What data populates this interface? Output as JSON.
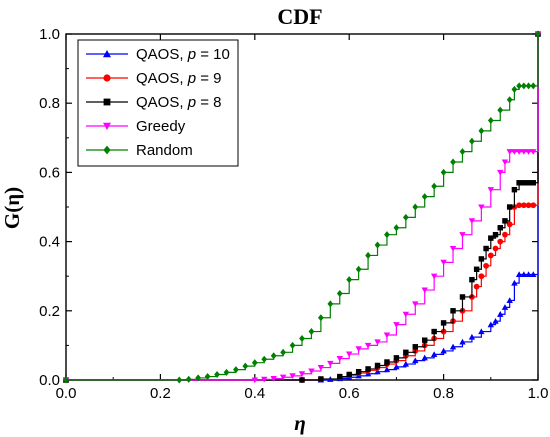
{
  "chart_data": {
    "type": "line",
    "title": "CDF",
    "xlabel": "η",
    "ylabel": "G(η)",
    "xlim": [
      0.0,
      1.0
    ],
    "ylim": [
      0.0,
      1.0
    ],
    "xticks": [
      "0.0",
      "0.2",
      "0.4",
      "0.6",
      "0.8",
      "1.0"
    ],
    "yticks": [
      "0.0",
      "0.2",
      "0.4",
      "0.6",
      "0.8",
      "1.0"
    ],
    "grid": false,
    "legend_position": "top-left",
    "series": [
      {
        "name": "QAOS, p = 10",
        "legend_prefix": "QAOS,",
        "legend_p": "p",
        "legend_value": "= 10",
        "color": "#0000ff",
        "marker": "triangle-up",
        "x": [
          0.0,
          0.54,
          0.56,
          0.58,
          0.6,
          0.62,
          0.64,
          0.66,
          0.68,
          0.7,
          0.72,
          0.74,
          0.76,
          0.78,
          0.8,
          0.82,
          0.84,
          0.86,
          0.88,
          0.9,
          0.91,
          0.92,
          0.93,
          0.94,
          0.95,
          0.96,
          0.97,
          0.98,
          0.99,
          1.0
        ],
        "y": [
          0.0,
          0.0,
          0.002,
          0.004,
          0.008,
          0.012,
          0.018,
          0.024,
          0.03,
          0.038,
          0.046,
          0.056,
          0.064,
          0.074,
          0.084,
          0.096,
          0.11,
          0.124,
          0.14,
          0.16,
          0.17,
          0.19,
          0.21,
          0.23,
          0.28,
          0.305,
          0.305,
          0.305,
          0.305,
          1.0
        ]
      },
      {
        "name": "QAOS, p = 9",
        "legend_prefix": "QAOS,",
        "legend_p": "p",
        "legend_value": "= 9",
        "color": "#ff0000",
        "marker": "circle",
        "x": [
          0.0,
          0.5,
          0.54,
          0.58,
          0.6,
          0.62,
          0.64,
          0.66,
          0.68,
          0.7,
          0.72,
          0.74,
          0.76,
          0.78,
          0.8,
          0.82,
          0.84,
          0.86,
          0.87,
          0.88,
          0.89,
          0.9,
          0.91,
          0.92,
          0.93,
          0.94,
          0.95,
          0.96,
          0.97,
          0.98,
          0.99,
          1.0
        ],
        "y": [
          0.0,
          0.0,
          0.002,
          0.008,
          0.014,
          0.02,
          0.028,
          0.036,
          0.046,
          0.056,
          0.07,
          0.084,
          0.1,
          0.12,
          0.14,
          0.17,
          0.2,
          0.24,
          0.27,
          0.3,
          0.33,
          0.36,
          0.38,
          0.4,
          0.42,
          0.45,
          0.5,
          0.505,
          0.505,
          0.505,
          0.505,
          1.0
        ]
      },
      {
        "name": "QAOS, p = 8",
        "legend_prefix": "QAOS,",
        "legend_p": "p",
        "legend_value": "= 8",
        "color": "#000000",
        "marker": "square",
        "x": [
          0.0,
          0.5,
          0.54,
          0.58,
          0.6,
          0.62,
          0.64,
          0.66,
          0.68,
          0.7,
          0.72,
          0.74,
          0.76,
          0.78,
          0.8,
          0.82,
          0.84,
          0.86,
          0.87,
          0.88,
          0.89,
          0.9,
          0.91,
          0.92,
          0.93,
          0.94,
          0.95,
          0.96,
          0.97,
          0.98,
          0.99,
          1.0
        ],
        "y": [
          0.0,
          0.0,
          0.003,
          0.01,
          0.016,
          0.024,
          0.032,
          0.042,
          0.052,
          0.064,
          0.08,
          0.096,
          0.115,
          0.14,
          0.165,
          0.2,
          0.24,
          0.29,
          0.32,
          0.35,
          0.38,
          0.41,
          0.42,
          0.44,
          0.46,
          0.5,
          0.55,
          0.57,
          0.57,
          0.57,
          0.57,
          1.0
        ]
      },
      {
        "name": "Greedy",
        "color": "#ff00ff",
        "marker": "triangle-down",
        "x": [
          0.0,
          0.4,
          0.42,
          0.44,
          0.46,
          0.48,
          0.5,
          0.52,
          0.54,
          0.56,
          0.58,
          0.6,
          0.62,
          0.64,
          0.66,
          0.68,
          0.7,
          0.72,
          0.74,
          0.76,
          0.78,
          0.8,
          0.82,
          0.84,
          0.86,
          0.88,
          0.9,
          0.92,
          0.93,
          0.94,
          0.95,
          0.96,
          0.97,
          0.98,
          0.99,
          1.0
        ],
        "y": [
          0.0,
          0.0,
          0.002,
          0.004,
          0.008,
          0.012,
          0.018,
          0.026,
          0.036,
          0.048,
          0.062,
          0.075,
          0.09,
          0.1,
          0.11,
          0.13,
          0.16,
          0.19,
          0.22,
          0.26,
          0.3,
          0.34,
          0.38,
          0.42,
          0.46,
          0.5,
          0.55,
          0.6,
          0.63,
          0.66,
          0.66,
          0.66,
          0.66,
          0.66,
          0.66,
          1.0
        ]
      },
      {
        "name": "Random",
        "color": "#008000",
        "marker": "diamond",
        "x": [
          0.0,
          0.24,
          0.26,
          0.28,
          0.3,
          0.32,
          0.34,
          0.36,
          0.38,
          0.4,
          0.42,
          0.44,
          0.46,
          0.48,
          0.5,
          0.52,
          0.54,
          0.56,
          0.58,
          0.6,
          0.62,
          0.64,
          0.66,
          0.68,
          0.7,
          0.72,
          0.74,
          0.76,
          0.78,
          0.8,
          0.82,
          0.84,
          0.86,
          0.88,
          0.9,
          0.92,
          0.94,
          0.95,
          0.96,
          0.97,
          0.98,
          0.99,
          1.0
        ],
        "y": [
          0.0,
          0.0,
          0.002,
          0.006,
          0.01,
          0.016,
          0.022,
          0.03,
          0.04,
          0.05,
          0.06,
          0.07,
          0.08,
          0.1,
          0.12,
          0.14,
          0.18,
          0.22,
          0.25,
          0.29,
          0.32,
          0.36,
          0.39,
          0.42,
          0.44,
          0.47,
          0.5,
          0.53,
          0.56,
          0.6,
          0.63,
          0.66,
          0.69,
          0.72,
          0.75,
          0.78,
          0.81,
          0.84,
          0.85,
          0.85,
          0.85,
          0.85,
          1.0
        ]
      }
    ]
  }
}
